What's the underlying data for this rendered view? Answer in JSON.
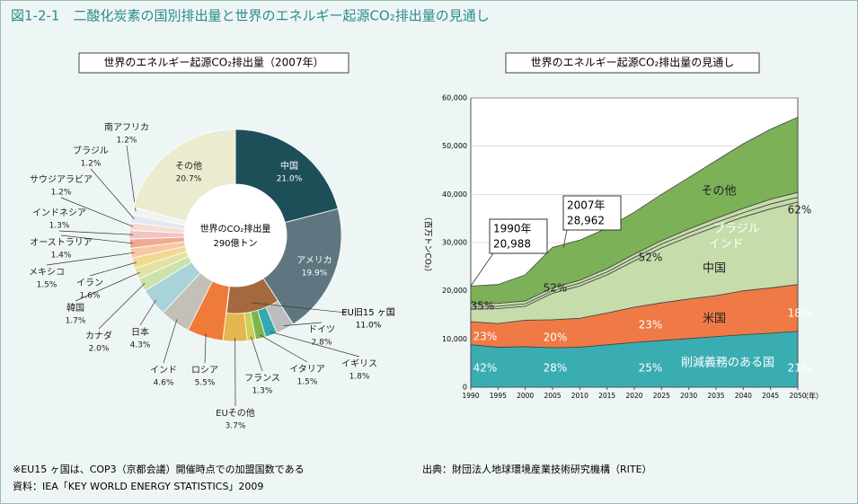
{
  "title": "図1-2-1　二酸化炭素の国別排出量と世界のエネルギー起源CO₂排出量の見通し",
  "chart_data": [
    {
      "type": "pie",
      "title": "世界のエネルギー起源CO₂排出量（2007年）",
      "center_label": "世界のCO₂排出量",
      "center_value_label": "290億トン",
      "categories": [
        "中国",
        "アメリカ",
        "ドイツ",
        "イギリス",
        "イタリア",
        "フランス",
        "EUその他",
        "ロシア",
        "インド",
        "日本",
        "カナダ",
        "韓国",
        "イラン",
        "メキシコ",
        "オーストラリア",
        "インドネシア",
        "サウジアラビア",
        "ブラジル",
        "南アフリカ",
        "その他"
      ],
      "values": [
        21.0,
        19.9,
        2.8,
        1.8,
        1.5,
        1.3,
        3.7,
        5.5,
        4.6,
        4.3,
        2.0,
        1.7,
        1.6,
        1.5,
        1.4,
        1.3,
        1.2,
        1.2,
        1.2,
        20.7
      ],
      "value_labels": [
        "21.0%",
        "19.9%",
        "2.8%",
        "1.8%",
        "1.5%",
        "1.3%",
        "3.7%",
        "5.5%",
        "4.6%",
        "4.3%",
        "2.0%",
        "1.7%",
        "1.6%",
        "1.5%",
        "1.4%",
        "1.3%",
        "1.2%",
        "1.2%",
        "1.2%",
        "20.7%"
      ],
      "colors": [
        "#1d4f59",
        "#5f7680",
        "#bdbdbd",
        "#35a9b1",
        "#7bb64a",
        "#cfcf55",
        "#e5b652",
        "#ef7b3b",
        "#c3c0b7",
        "#a8d4d9",
        "#cbe2ac",
        "#e2e2a4",
        "#f1d992",
        "#f6c9a2",
        "#f1aa92",
        "#f3c2c2",
        "#f6dcd4",
        "#e1e9f2",
        "#f3f3f3",
        "#ebebd0"
      ],
      "group": {
        "name": "EU旧15 ヶ国",
        "value": 11.0,
        "value_label": "11.0%",
        "color": "#a4693e"
      }
    },
    {
      "type": "area",
      "stacked": true,
      "title": "世界のエネルギー起源CO₂排出量の見通し",
      "y_label": "（百万トンCO₂）",
      "x_label": "（年）",
      "x": [
        1990,
        1995,
        2000,
        2005,
        2010,
        2015,
        2020,
        2025,
        2030,
        2035,
        2040,
        2045,
        2050
      ],
      "xlim": [
        1990,
        2050
      ],
      "xticks": [
        1990,
        1995,
        2000,
        2005,
        2010,
        2015,
        2020,
        2025,
        2030,
        2035,
        2040,
        2045,
        2050
      ],
      "ylim": [
        0,
        60000
      ],
      "yticks": [
        0,
        {
          "value": 10000,
          "label": "10,000"
        },
        {
          "value": 20000,
          "label": "20,000"
        },
        {
          "value": 30000,
          "label": "30,000"
        },
        {
          "value": 40000,
          "label": "40,000"
        },
        {
          "value": 50000,
          "label": "50,000"
        },
        {
          "value": 60000,
          "label": "60,000"
        }
      ],
      "grid": true,
      "series": [
        {
          "name": "削減義務のある国",
          "color": "#3aadb2",
          "values": [
            8800,
            8300,
            8400,
            8200,
            8300,
            8800,
            9300,
            9700,
            10100,
            10500,
            10900,
            11200,
            11600
          ]
        },
        {
          "name": "米国",
          "color": "#ef7a45",
          "values": [
            4800,
            4900,
            5500,
            5800,
            6000,
            6600,
            7300,
            7800,
            8200,
            8500,
            9100,
            9400,
            9700
          ]
        },
        {
          "name": "中国",
          "color": "#c6dcaa",
          "values": [
            2600,
            3100,
            2900,
            5500,
            6700,
            7900,
            9600,
            11400,
            12900,
            14300,
            15300,
            16400,
            17100
          ]
        },
        {
          "name": "インド",
          "color": "#c6dcaa",
          "values": [
            500,
            500,
            500,
            500,
            600,
            600,
            700,
            800,
            800,
            900,
            900,
            1000,
            1000
          ]
        },
        {
          "name": "ブラジル",
          "color": "#c6dcaa",
          "values": [
            600,
            600,
            600,
            600,
            600,
            700,
            700,
            700,
            800,
            800,
            900,
            1000,
            1000
          ]
        },
        {
          "name": "その他",
          "color": "#7cb157",
          "values": [
            3688,
            3900,
            5400,
            8400,
            8300,
            8400,
            8700,
            9600,
            10700,
            12000,
            13400,
            14500,
            15600
          ]
        }
      ],
      "callouts": [
        {
          "label": "1990年",
          "x": 1990,
          "value": 20988,
          "value_label": "20,988"
        },
        {
          "label": "2007年",
          "x": 2007,
          "value": 28962,
          "value_label": "28,962"
        }
      ],
      "share_labels": [
        "35%",
        "52%",
        "52%",
        "62%",
        "23%",
        "20%",
        "23%",
        "18%",
        "42%",
        "28%",
        "25%",
        "21%"
      ]
    }
  ],
  "notes": [
    "※EU15 ヶ国は、COP3（京都会議）開催時点での加盟国数である",
    "資料：IEA「KEY WORLD ENERGY STATISTICS」2009"
  ],
  "source": "出典：財団法人地球環境産業技術研究機構（RITE）"
}
